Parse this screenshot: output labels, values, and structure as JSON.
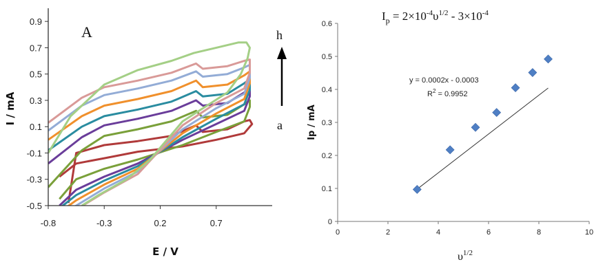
{
  "chart_data": [
    {
      "type": "line",
      "panel_label": "A",
      "xlabel": "E / V",
      "ylabel": "I / mA",
      "xlim": [
        -0.8,
        1.2
      ],
      "ylim": [
        -0.5,
        1.0
      ],
      "x_ticks": [
        "-0.8",
        "-0.3",
        "0.2",
        "0.7"
      ],
      "x_tick_values": [
        -0.8,
        -0.3,
        0.2,
        0.7
      ],
      "y_ticks": [
        "0.9",
        "0.7",
        "0.5",
        "0.3",
        "0.1",
        "-0.1",
        "-0.3",
        "-0.5"
      ],
      "y_tick_values": [
        0.9,
        0.7,
        0.5,
        0.3,
        0.1,
        -0.1,
        -0.3,
        -0.5
      ],
      "arrow_start_label": "a",
      "arrow_end_label": "h",
      "series": [
        {
          "color": "#b03a3a",
          "anodic": [
            [
              -0.62,
              -0.48
            ],
            [
              -0.55,
              -0.1
            ],
            [
              -0.3,
              -0.04
            ],
            [
              0.0,
              -0.01
            ],
            [
              0.3,
              0.03
            ],
            [
              0.52,
              0.11
            ],
            [
              0.58,
              0.06
            ],
            [
              0.8,
              0.08
            ],
            [
              0.95,
              0.14
            ],
            [
              1.0,
              0.15
            ]
          ],
          "cathodic": [
            [
              1.0,
              0.15
            ],
            [
              1.02,
              0.12
            ],
            [
              0.95,
              0.05
            ],
            [
              0.7,
              0.0
            ],
            [
              0.4,
              -0.05
            ],
            [
              0.0,
              -0.09
            ],
            [
              -0.3,
              -0.14
            ],
            [
              -0.55,
              -0.18
            ],
            [
              -0.7,
              -0.28
            ]
          ]
        },
        {
          "color": "#7aa03a",
          "anodic": [
            [
              -0.8,
              -0.36
            ],
            [
              -0.5,
              -0.08
            ],
            [
              -0.3,
              0.03
            ],
            [
              0.0,
              0.08
            ],
            [
              0.3,
              0.14
            ],
            [
              0.52,
              0.22
            ],
            [
              0.58,
              0.17
            ],
            [
              0.8,
              0.19
            ],
            [
              0.95,
              0.27
            ],
            [
              1.0,
              0.3
            ]
          ],
          "cathodic": [
            [
              1.0,
              0.3
            ],
            [
              1.0,
              0.25
            ],
            [
              0.95,
              0.14
            ],
            [
              0.7,
              0.06
            ],
            [
              0.4,
              -0.04
            ],
            [
              0.0,
              -0.15
            ],
            [
              -0.3,
              -0.22
            ],
            [
              -0.55,
              -0.3
            ],
            [
              -0.7,
              -0.45
            ]
          ]
        },
        {
          "color": "#6a3d9a",
          "anodic": [
            [
              -0.8,
              -0.18
            ],
            [
              -0.5,
              0.02
            ],
            [
              -0.3,
              0.11
            ],
            [
              0.0,
              0.16
            ],
            [
              0.3,
              0.22
            ],
            [
              0.52,
              0.3
            ],
            [
              0.58,
              0.26
            ],
            [
              0.8,
              0.28
            ],
            [
              0.95,
              0.36
            ],
            [
              1.0,
              0.4
            ]
          ],
          "cathodic": [
            [
              1.0,
              0.4
            ],
            [
              1.0,
              0.33
            ],
            [
              0.95,
              0.22
            ],
            [
              0.7,
              0.12
            ],
            [
              0.4,
              0.0
            ],
            [
              0.0,
              -0.18
            ],
            [
              -0.3,
              -0.28
            ],
            [
              -0.55,
              -0.38
            ],
            [
              -0.7,
              -0.5
            ]
          ]
        },
        {
          "color": "#2a8ca0",
          "anodic": [
            [
              -0.8,
              -0.08
            ],
            [
              -0.5,
              0.1
            ],
            [
              -0.3,
              0.18
            ],
            [
              0.0,
              0.23
            ],
            [
              0.3,
              0.29
            ],
            [
              0.52,
              0.37
            ],
            [
              0.58,
              0.33
            ],
            [
              0.8,
              0.35
            ],
            [
              0.95,
              0.43
            ],
            [
              1.0,
              0.46
            ]
          ],
          "cathodic": [
            [
              1.0,
              0.46
            ],
            [
              1.0,
              0.38
            ],
            [
              0.95,
              0.27
            ],
            [
              0.7,
              0.16
            ],
            [
              0.4,
              0.02
            ],
            [
              0.0,
              -0.2
            ],
            [
              -0.3,
              -0.31
            ],
            [
              -0.55,
              -0.42
            ],
            [
              -0.7,
              -0.52
            ]
          ]
        },
        {
          "color": "#f0902c",
          "anodic": [
            [
              -0.8,
              0.0
            ],
            [
              -0.5,
              0.18
            ],
            [
              -0.3,
              0.26
            ],
            [
              0.0,
              0.31
            ],
            [
              0.3,
              0.37
            ],
            [
              0.52,
              0.45
            ],
            [
              0.58,
              0.4
            ],
            [
              0.8,
              0.42
            ],
            [
              0.95,
              0.49
            ],
            [
              1.0,
              0.52
            ]
          ],
          "cathodic": [
            [
              1.0,
              0.52
            ],
            [
              1.0,
              0.43
            ],
            [
              0.95,
              0.31
            ],
            [
              0.7,
              0.2
            ],
            [
              0.4,
              0.05
            ],
            [
              0.0,
              -0.22
            ],
            [
              -0.3,
              -0.34
            ],
            [
              -0.55,
              -0.46
            ],
            [
              -0.7,
              -0.55
            ]
          ]
        },
        {
          "color": "#93acd6",
          "anodic": [
            [
              -0.8,
              0.07
            ],
            [
              -0.5,
              0.26
            ],
            [
              -0.3,
              0.34
            ],
            [
              0.0,
              0.39
            ],
            [
              0.3,
              0.45
            ],
            [
              0.52,
              0.52
            ],
            [
              0.58,
              0.48
            ],
            [
              0.8,
              0.5
            ],
            [
              0.95,
              0.55
            ],
            [
              1.0,
              0.57
            ]
          ],
          "cathodic": [
            [
              1.0,
              0.57
            ],
            [
              1.0,
              0.47
            ],
            [
              0.95,
              0.35
            ],
            [
              0.7,
              0.24
            ],
            [
              0.4,
              0.08
            ],
            [
              0.0,
              -0.24
            ],
            [
              -0.3,
              -0.37
            ],
            [
              -0.55,
              -0.5
            ],
            [
              -0.7,
              -0.58
            ]
          ]
        },
        {
          "color": "#d99a98",
          "anodic": [
            [
              -0.8,
              0.13
            ],
            [
              -0.5,
              0.32
            ],
            [
              -0.3,
              0.4
            ],
            [
              0.0,
              0.45
            ],
            [
              0.3,
              0.51
            ],
            [
              0.52,
              0.58
            ],
            [
              0.58,
              0.54
            ],
            [
              0.8,
              0.56
            ],
            [
              0.95,
              0.6
            ],
            [
              1.0,
              0.61
            ]
          ],
          "cathodic": [
            [
              1.0,
              0.61
            ],
            [
              1.0,
              0.51
            ],
            [
              0.95,
              0.39
            ],
            [
              0.7,
              0.28
            ],
            [
              0.4,
              0.11
            ],
            [
              0.0,
              -0.26
            ],
            [
              -0.3,
              -0.4
            ],
            [
              -0.55,
              -0.53
            ],
            [
              -0.7,
              -0.6
            ]
          ]
        },
        {
          "color": "#a4cf86",
          "anodic": [
            [
              -0.8,
              -0.1
            ],
            [
              -0.6,
              0.18
            ],
            [
              -0.3,
              0.42
            ],
            [
              0.0,
              0.53
            ],
            [
              0.3,
              0.6
            ],
            [
              0.5,
              0.66
            ],
            [
              0.7,
              0.7
            ],
            [
              0.9,
              0.74
            ],
            [
              0.97,
              0.74
            ],
            [
              1.0,
              0.7
            ]
          ],
          "cathodic": [
            [
              1.0,
              0.7
            ],
            [
              0.98,
              0.62
            ],
            [
              0.92,
              0.5
            ],
            [
              0.8,
              0.36
            ],
            [
              0.6,
              0.25
            ],
            [
              0.4,
              0.14
            ],
            [
              0.1,
              -0.16
            ],
            [
              -0.1,
              -0.3
            ],
            [
              -0.35,
              -0.42
            ],
            [
              -0.5,
              -0.5
            ]
          ]
        }
      ]
    },
    {
      "type": "scatter",
      "title_equation": "Iₚ = 2×10⁻⁴υ¹ᐟ² - 3×10⁻⁴",
      "title_parts": {
        "I": "I",
        "p": "p",
        "mid": " = 2×10",
        "exp1": "-4",
        "v": "υ",
        "exp2": "1/2",
        "tail": " - 3×10",
        "exp3": "-4"
      },
      "xlabel_base": "υ",
      "xlabel_exp": "1/2",
      "ylabel": "Ip / mA",
      "xlim": [
        0,
        10
      ],
      "ylim": [
        0,
        0.6
      ],
      "x_ticks": [
        "0",
        "2",
        "4",
        "6",
        "8",
        "10"
      ],
      "x_tick_values": [
        0,
        2,
        4,
        6,
        8,
        10
      ],
      "y_ticks": [
        "0",
        "0.1",
        "0.2",
        "0.3",
        "0.4",
        "0.5",
        "0.6"
      ],
      "y_tick_values": [
        0,
        0.1,
        0.2,
        0.3,
        0.4,
        0.5,
        0.6
      ],
      "marker_color": "#4f7fc4",
      "x": [
        3.16,
        4.47,
        5.48,
        6.32,
        7.07,
        7.75,
        8.37
      ],
      "y": [
        0.097,
        0.217,
        0.285,
        0.33,
        0.405,
        0.451,
        0.492
      ],
      "trendline": {
        "slope": 0.0588,
        "intercept": -0.088,
        "x_range": [
          3.16,
          8.37
        ]
      },
      "trend_equation": "y = 0.0002x - 0.0003",
      "r_squared_base": "R",
      "r_squared_exp": "2",
      "r_squared_value": " = 0.9952"
    }
  ]
}
